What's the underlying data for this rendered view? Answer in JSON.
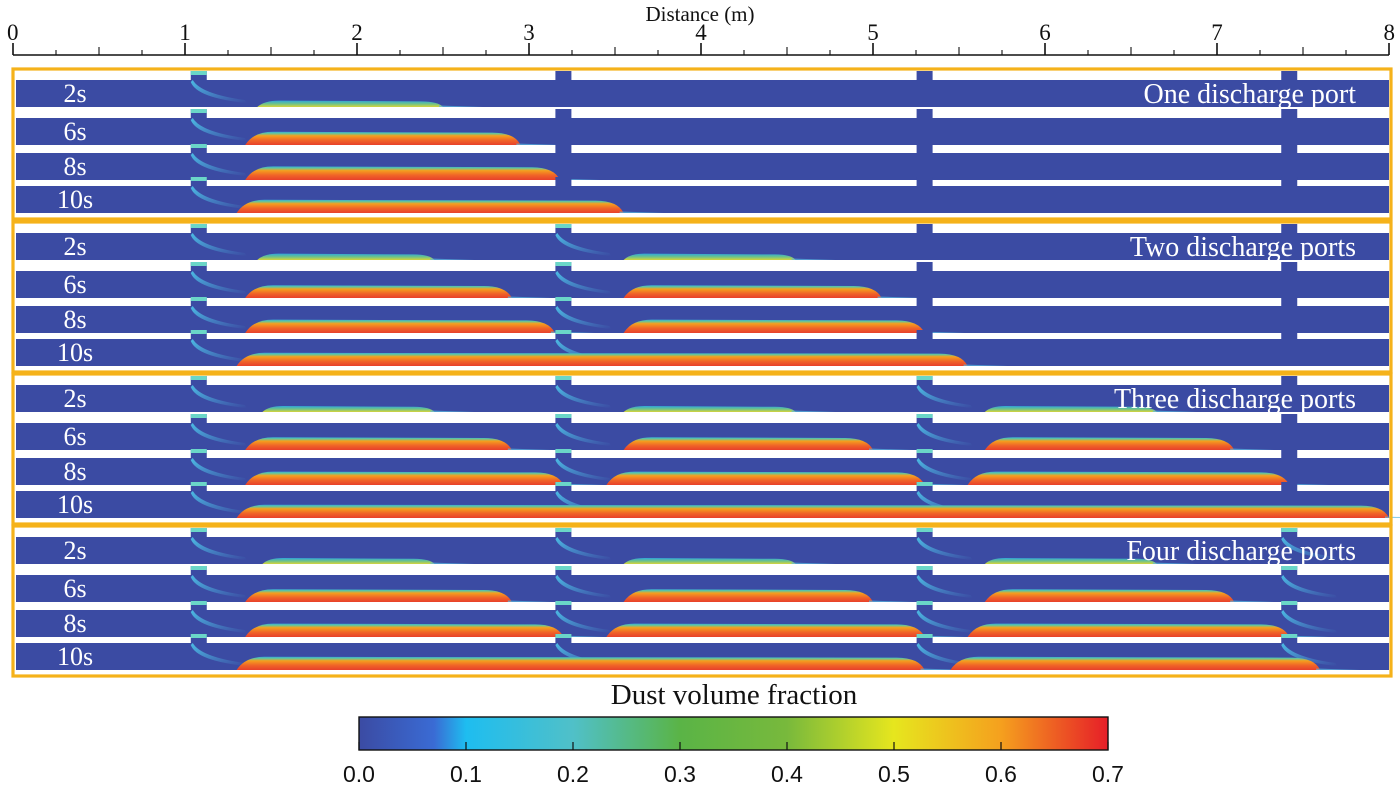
{
  "axis": {
    "title": "Distance (m)",
    "ticks": [
      "0",
      "1",
      "2",
      "3",
      "4",
      "5",
      "6",
      "7",
      "8"
    ],
    "range": [
      0,
      8
    ]
  },
  "port_positions_m": [
    1.08,
    3.2,
    5.3,
    7.42
  ],
  "groups": [
    {
      "title": "One discharge port",
      "active_ports": 1,
      "rows": [
        {
          "time": "2s",
          "deposits": [
            {
              "from": 1.42,
              "to": 2.5,
              "peak": 0.32
            }
          ]
        },
        {
          "time": "6s",
          "deposits": [
            {
              "from": 1.35,
              "to": 2.95,
              "peak": 0.66
            }
          ]
        },
        {
          "time": "8s",
          "deposits": [
            {
              "from": 1.35,
              "to": 3.18,
              "peak": 0.68
            }
          ]
        },
        {
          "time": "10s",
          "deposits": [
            {
              "from": 1.3,
              "to": 3.55,
              "peak": 0.66
            }
          ]
        }
      ]
    },
    {
      "title": "Two discharge ports",
      "active_ports": 2,
      "rows": [
        {
          "time": "2s",
          "deposits": [
            {
              "from": 1.42,
              "to": 2.45,
              "peak": 0.32
            },
            {
              "from": 3.55,
              "to": 4.55,
              "peak": 0.32
            }
          ]
        },
        {
          "time": "6s",
          "deposits": [
            {
              "from": 1.35,
              "to": 2.9,
              "peak": 0.64
            },
            {
              "from": 3.55,
              "to": 5.05,
              "peak": 0.64
            }
          ]
        },
        {
          "time": "8s",
          "deposits": [
            {
              "from": 1.35,
              "to": 3.15,
              "peak": 0.67
            },
            {
              "from": 3.55,
              "to": 5.3,
              "peak": 0.67
            }
          ]
        },
        {
          "time": "10s",
          "deposits": [
            {
              "from": 1.3,
              "to": 5.55,
              "peak": 0.66
            }
          ]
        }
      ]
    },
    {
      "title": "Three discharge ports",
      "active_ports": 3,
      "rows": [
        {
          "time": "2s",
          "deposits": [
            {
              "from": 1.45,
              "to": 2.45,
              "peak": 0.3
            },
            {
              "from": 3.55,
              "to": 4.55,
              "peak": 0.3
            },
            {
              "from": 5.65,
              "to": 6.65,
              "peak": 0.3
            }
          ]
        },
        {
          "time": "6s",
          "deposits": [
            {
              "from": 1.35,
              "to": 2.9,
              "peak": 0.64
            },
            {
              "from": 3.55,
              "to": 5.0,
              "peak": 0.64
            },
            {
              "from": 5.65,
              "to": 7.1,
              "peak": 0.64
            }
          ]
        },
        {
          "time": "8s",
          "deposits": [
            {
              "from": 1.35,
              "to": 3.2,
              "peak": 0.67
            },
            {
              "from": 3.45,
              "to": 5.3,
              "peak": 0.67
            },
            {
              "from": 5.55,
              "to": 7.42,
              "peak": 0.67
            }
          ]
        },
        {
          "time": "10s",
          "deposits": [
            {
              "from": 1.3,
              "to": 8.0,
              "peak": 0.66
            }
          ]
        }
      ]
    },
    {
      "title": "Four discharge ports",
      "active_ports": 4,
      "rows": [
        {
          "time": "2s",
          "deposits": [
            {
              "from": 1.45,
              "to": 2.45,
              "peak": 0.3
            },
            {
              "from": 3.55,
              "to": 4.55,
              "peak": 0.3
            },
            {
              "from": 5.65,
              "to": 6.65,
              "peak": 0.3
            }
          ]
        },
        {
          "time": "6s",
          "deposits": [
            {
              "from": 1.35,
              "to": 2.9,
              "peak": 0.64
            },
            {
              "from": 3.55,
              "to": 5.0,
              "peak": 0.64
            },
            {
              "from": 5.65,
              "to": 7.1,
              "peak": 0.64
            }
          ]
        },
        {
          "time": "8s",
          "deposits": [
            {
              "from": 1.35,
              "to": 3.2,
              "peak": 0.67
            },
            {
              "from": 3.45,
              "to": 5.3,
              "peak": 0.67
            },
            {
              "from": 5.55,
              "to": 7.42,
              "peak": 0.67
            }
          ]
        },
        {
          "time": "10s",
          "deposits": [
            {
              "from": 1.3,
              "to": 5.3,
              "peak": 0.66
            },
            {
              "from": 5.45,
              "to": 7.6,
              "peak": 0.66
            }
          ]
        }
      ]
    }
  ],
  "colorbar": {
    "title": "Dust volume fraction",
    "min": 0.0,
    "max": 0.7,
    "tick_labels": [
      "0.0",
      "0.1",
      "0.2",
      "0.3",
      "0.4",
      "0.5",
      "0.6",
      "0.7"
    ],
    "stops": [
      {
        "v": 0.0,
        "color": "#3b4ba3"
      },
      {
        "v": 0.07,
        "color": "#3a6bd4"
      },
      {
        "v": 0.1,
        "color": "#1ebdf0"
      },
      {
        "v": 0.2,
        "color": "#50c0c8"
      },
      {
        "v": 0.3,
        "color": "#5ab446"
      },
      {
        "v": 0.4,
        "color": "#78b93c"
      },
      {
        "v": 0.5,
        "color": "#e6e61e"
      },
      {
        "v": 0.6,
        "color": "#f5a01e"
      },
      {
        "v": 0.7,
        "color": "#e61e28"
      }
    ]
  },
  "colors": {
    "duct": "#3b4ba3",
    "group_frame": "#f5b21a",
    "deposit_edge": "#5fc6a0",
    "deposit_core": "#f06428",
    "deposit_hot": "#e8402a"
  }
}
